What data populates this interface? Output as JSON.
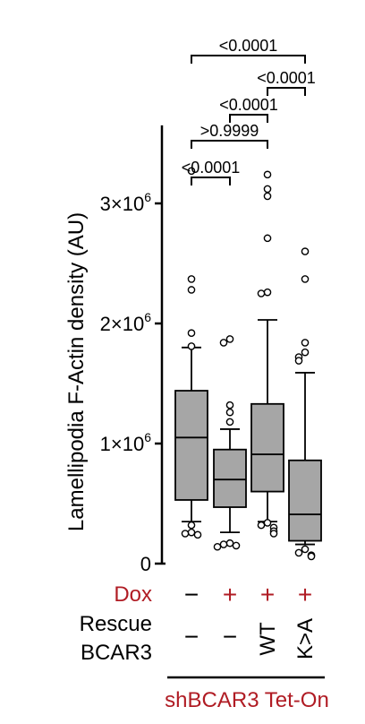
{
  "chart_data": {
    "type": "box",
    "ylabel": "Lamellipodia F-Actin density (AU)",
    "y_ticks": [
      {
        "value": 0,
        "base": "0",
        "exp": ""
      },
      {
        "value": 1000000,
        "base": "1×10",
        "exp": "6"
      },
      {
        "value": 2000000,
        "base": "2×10",
        "exp": "6"
      },
      {
        "value": 3000000,
        "base": "3×10",
        "exp": "6"
      }
    ],
    "ylim": [
      0,
      3650000
    ],
    "groups": [
      {
        "dox": "−",
        "rescue": "−",
        "whisker_low": 350000,
        "q1": 530000,
        "median": 1050000,
        "q3": 1440000,
        "whisker_high": 1800000,
        "outliers": [
          3270000,
          2370000,
          2280000,
          1920000,
          1810000,
          320000,
          260000,
          250000,
          240000
        ]
      },
      {
        "dox": "+",
        "rescue": "−",
        "whisker_low": 260000,
        "q1": 470000,
        "median": 700000,
        "q3": 950000,
        "whisker_high": 1120000,
        "outliers": [
          1870000,
          1840000,
          1320000,
          1260000,
          1180000,
          170000,
          160000,
          150000,
          140000
        ]
      },
      {
        "dox": "+",
        "rescue": "WT",
        "whisker_low": 350000,
        "q1": 600000,
        "median": 910000,
        "q3": 1330000,
        "whisker_high": 2030000,
        "outliers": [
          3240000,
          3120000,
          3060000,
          2710000,
          2260000,
          2250000,
          340000,
          320000,
          300000,
          270000,
          250000
        ]
      },
      {
        "dox": "+",
        "rescue": "K>A",
        "whisker_low": 160000,
        "q1": 190000,
        "median": 410000,
        "q3": 860000,
        "whisker_high": 1590000,
        "outliers": [
          2600000,
          2370000,
          1840000,
          1760000,
          1720000,
          1690000,
          120000,
          90000,
          70000,
          60000
        ]
      }
    ],
    "comparisons": [
      {
        "from": 0,
        "to": 1,
        "label": "<0.0001"
      },
      {
        "from": 0,
        "to": 2,
        "label": ">0.9999"
      },
      {
        "from": 1,
        "to": 2,
        "label": "<0.0001"
      },
      {
        "from": 2,
        "to": 3,
        "label": "<0.0001"
      },
      {
        "from": 0,
        "to": 3,
        "label": "<0.0001"
      }
    ],
    "row_labels": {
      "dox": "Dox",
      "rescue_line1": "Rescue",
      "rescue_line2": "BCAR3"
    },
    "group_label": "shBCAR3 Tet-On"
  },
  "colors": {
    "box_fill": "#a6a6a6",
    "accent_red": "#b01c24",
    "ink": "#000000"
  }
}
